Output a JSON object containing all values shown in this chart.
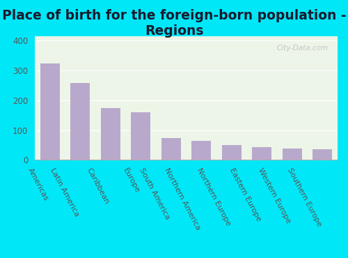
{
  "title": "Place of birth for the foreign-born population -\nRegions",
  "categories": [
    "Americas",
    "Latin America",
    "Caribbean",
    "Europe",
    "South America",
    "Northern America",
    "Northern Europe",
    "Eastern Europe",
    "Western Europe",
    "Southern Europe"
  ],
  "values": [
    323,
    258,
    173,
    160,
    74,
    65,
    50,
    44,
    39,
    37
  ],
  "bar_color": "#b8a9cc",
  "background_outer": "#00e8f8",
  "background_inner": "#edf5e8",
  "yticks": [
    0,
    100,
    200,
    300,
    400
  ],
  "ylim": [
    0,
    415
  ],
  "title_fontsize": 13.5,
  "tick_fontsize": 8.5,
  "xtick_fontsize": 8.0,
  "watermark": "City-Data.com",
  "label_rotation": -62
}
